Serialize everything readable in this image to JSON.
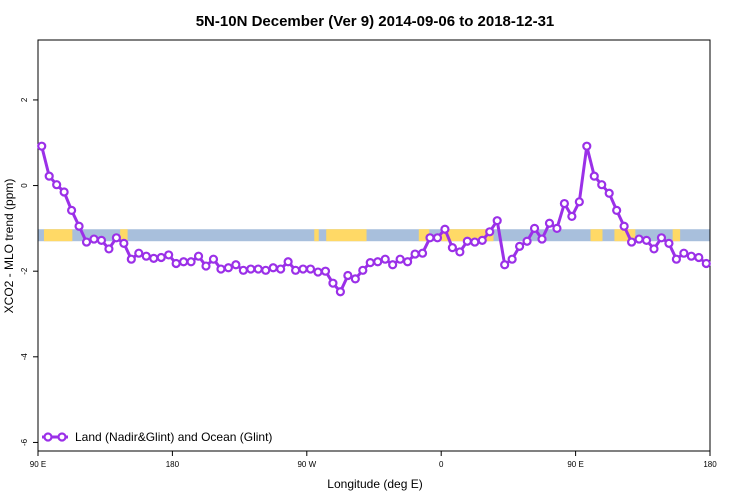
{
  "chart_data": {
    "type": "line",
    "title": "5N-10N December (Ver 9)   2014-09-06 to 2018-12-31",
    "xlabel": "Longitude (deg E)",
    "ylabel": "XCO2 - MLO trend (ppm)",
    "x_ticks": [
      {
        "value": 90,
        "label": "90 E"
      },
      {
        "value": 180,
        "label": "180"
      },
      {
        "value": 270,
        "label": "90 W"
      },
      {
        "value": 360,
        "label": "0"
      },
      {
        "value": 450,
        "label": "90 E"
      },
      {
        "value": 540,
        "label": "180"
      }
    ],
    "y_ticks": [
      2,
      0,
      -2,
      -4,
      -6
    ],
    "xlim": [
      90,
      540
    ],
    "ylim": [
      -6.2,
      3.4
    ],
    "grid": false,
    "legend_position": "bottom-left",
    "colors": {
      "series": "#9b30e8",
      "ocean_band": "#a8bfdc",
      "land_band": "#ffd966"
    },
    "land_ocean_band": {
      "y_range": [
        -1.3,
        -1.02
      ],
      "land_segments": [
        [
          94,
          113
        ],
        [
          145,
          150
        ],
        [
          275,
          278
        ],
        [
          283,
          310
        ],
        [
          345,
          352
        ],
        [
          360,
          395
        ],
        [
          460,
          468
        ],
        [
          476,
          490
        ],
        [
          515,
          520
        ]
      ]
    },
    "series": [
      {
        "name": "Land (Nadir&Glint) and Ocean (Glint)",
        "x": [
          92.5,
          97.5,
          102.5,
          107.5,
          112.5,
          117.5,
          122.5,
          127.5,
          132.5,
          137.5,
          142.5,
          147.5,
          152.5,
          157.5,
          162.5,
          167.5,
          172.5,
          177.5,
          182.5,
          187.5,
          192.5,
          197.5,
          202.5,
          207.5,
          212.5,
          217.5,
          222.5,
          227.5,
          232.5,
          237.5,
          242.5,
          247.5,
          252.5,
          257.5,
          262.5,
          267.5,
          272.5,
          277.5,
          282.5,
          287.5,
          292.5,
          297.5,
          302.5,
          307.5,
          312.5,
          317.5,
          322.5,
          327.5,
          332.5,
          337.5,
          342.5,
          347.5,
          352.5,
          357.5,
          362.5,
          367.5,
          372.5,
          377.5,
          382.5,
          387.5,
          392.5,
          397.5,
          402.5,
          407.5,
          412.5,
          417.5,
          422.5,
          427.5,
          432.5,
          437.5,
          442.5,
          447.5,
          452.5,
          457.5,
          462.5,
          467.5,
          472.5,
          477.5,
          482.5,
          487.5,
          492.5,
          497.5,
          502.5,
          507.5,
          512.5,
          517.5,
          522.5,
          527.5,
          532.5,
          537.5
        ],
        "values": [
          0.92,
          0.22,
          0.02,
          -0.15,
          -0.58,
          -0.95,
          -1.32,
          -1.25,
          -1.28,
          -1.48,
          -1.22,
          -1.35,
          -1.72,
          -1.58,
          -1.65,
          -1.7,
          -1.68,
          -1.62,
          -1.82,
          -1.78,
          -1.78,
          -1.65,
          -1.88,
          -1.72,
          -1.95,
          -1.92,
          -1.85,
          -1.98,
          -1.95,
          -1.95,
          -1.98,
          -1.92,
          -1.95,
          -1.78,
          -1.98,
          -1.95,
          -1.95,
          -2.02,
          -2.0,
          -2.28,
          -2.48,
          -2.1,
          -2.18,
          -1.98,
          -1.8,
          -1.78,
          -1.72,
          -1.85,
          -1.72,
          -1.78,
          -1.6,
          -1.58,
          -1.22,
          -1.22,
          -1.02,
          -1.45,
          -1.55,
          -1.3,
          -1.32,
          -1.28,
          -1.08,
          -0.82,
          -1.85,
          -1.72,
          -1.42,
          -1.3,
          -1.0,
          -1.25,
          -0.88,
          -1.0,
          -0.42,
          -0.72,
          -0.38,
          0.92,
          0.22,
          0.02,
          -0.18,
          -0.58,
          -0.95,
          -1.32,
          -1.25,
          -1.28,
          -1.48,
          -1.22,
          -1.35,
          -1.72,
          -1.58,
          -1.65,
          -1.68,
          -1.82
        ]
      }
    ]
  }
}
